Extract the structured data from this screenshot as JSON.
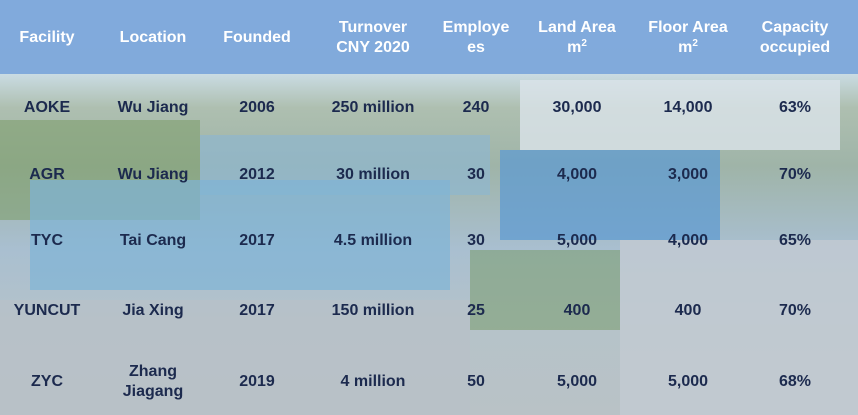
{
  "table": {
    "headers": [
      "Facility",
      "Location",
      "Founded",
      "Turnover\nCNY 2020",
      "Employe\nes",
      "Land Area\nm²",
      "Floor Area\nm²",
      "Capacity\noccupied"
    ],
    "rows": [
      [
        "AOKE",
        "Wu Jiang",
        "2006",
        "250 million",
        "240",
        "30,000",
        "14,000",
        "63%"
      ],
      [
        "AGR",
        "Wu Jiang",
        "2012",
        "30 million",
        "30",
        "4,000",
        "3,000",
        "70%"
      ],
      [
        "TYC",
        "Tai Cang",
        "2017",
        "4.5 million",
        "30",
        "5,000",
        "4,000",
        "65%"
      ],
      [
        "YUNCUT",
        "Jia Xing",
        "2017",
        "150 million",
        "25",
        "400",
        "400",
        "70%"
      ],
      [
        "ZYC",
        "Zhang\nJiagang",
        "2019",
        "4 million",
        "50",
        "5,000",
        "5,000",
        "68%"
      ]
    ]
  },
  "colors": {
    "header_band": "#7ea8db",
    "header_text": "#ffffff",
    "cell_text": "#1c2a4e"
  }
}
